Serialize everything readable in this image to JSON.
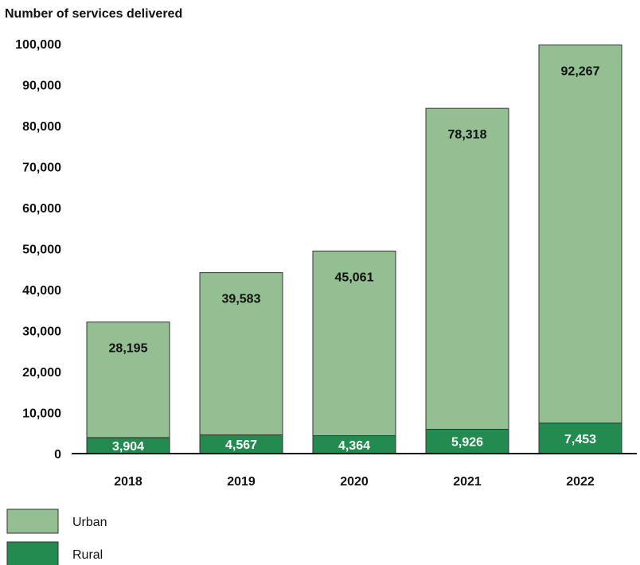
{
  "chart_data": {
    "type": "bar",
    "stacked": true,
    "title": "Number of services delivered",
    "xlabel": "",
    "ylabel": "",
    "categories": [
      "2018",
      "2019",
      "2020",
      "2021",
      "2022"
    ],
    "yticks": [
      "0",
      "10,000",
      "20,000",
      "30,000",
      "40,000",
      "50,000",
      "60,000",
      "70,000",
      "80,000",
      "90,000",
      "100,000"
    ],
    "ylim": [
      0,
      100000
    ],
    "grid": false,
    "legend": "bottom-left",
    "series": [
      {
        "name": "Rural",
        "color": "#238b4f",
        "label_color": "#ffffff",
        "values": [
          3904,
          4567,
          4364,
          5926,
          7453
        ],
        "labels": [
          "3,904",
          "4,567",
          "4,364",
          "5,926",
          "7,453"
        ]
      },
      {
        "name": "Urban",
        "color": "#93bf92",
        "label_color": "#111111",
        "values": [
          28195,
          39583,
          45061,
          78318,
          92267
        ],
        "labels": [
          "28,195",
          "39,583",
          "45,061",
          "78,318",
          "92,267"
        ]
      }
    ],
    "legend_entries": [
      {
        "name": "Urban",
        "color": "#93bf92"
      },
      {
        "name": "Rural",
        "color": "#238b4f"
      }
    ]
  }
}
